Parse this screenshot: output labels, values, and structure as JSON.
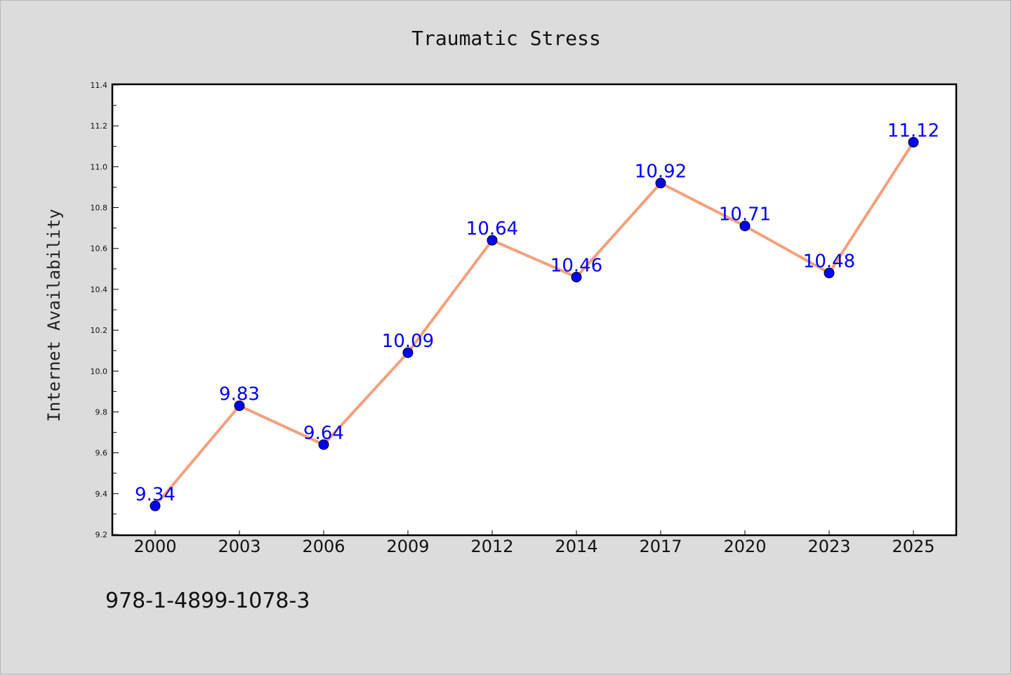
{
  "chart_data": {
    "type": "line",
    "title": "Traumatic Stress",
    "xlabel": "",
    "ylabel": "Internet Availability",
    "categories": [
      "2000",
      "2003",
      "2006",
      "2009",
      "2012",
      "2014",
      "2017",
      "2020",
      "2023",
      "2025"
    ],
    "series": [
      {
        "values": [
          9.34,
          9.83,
          9.64,
          10.09,
          10.64,
          10.46,
          10.92,
          10.71,
          10.48,
          11.12
        ],
        "data_labels": [
          "9.34",
          "9.83",
          "9.64",
          "10.09",
          "10.64",
          "10.46",
          "10.92",
          "10.71",
          "10.48",
          "11.12"
        ]
      }
    ],
    "ylim": [
      9.2,
      11.4
    ],
    "yticks": [
      "9.2",
      "9.4",
      "9.6",
      "9.8",
      "10.0",
      "10.2",
      "10.4",
      "10.6",
      "10.8",
      "11.0",
      "11.2",
      "11.4"
    ],
    "grid": false,
    "legend": "none",
    "colors": {
      "line": "#f4a07c",
      "marker": "#0000ff",
      "data_label": "#0000ff",
      "background": "#dcdcdc",
      "plot_area": "#ffffff"
    }
  },
  "footer": {
    "text": "978-1-4899-1078-3"
  }
}
